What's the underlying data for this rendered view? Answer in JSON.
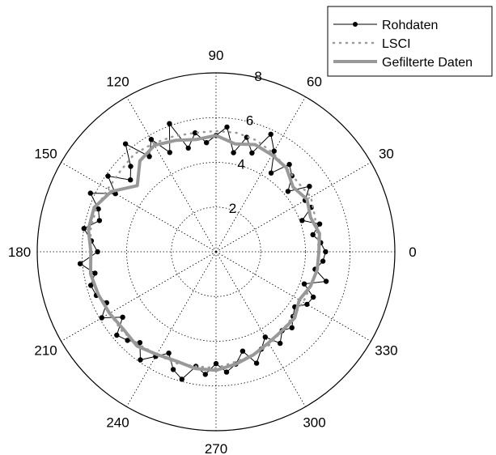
{
  "chart_data": {
    "type": "polar-line",
    "angle_unit": "degrees",
    "r_range": [
      0,
      8
    ],
    "radial_ticks": [
      "2",
      "4",
      "6",
      "8"
    ],
    "angle_ticks": [
      "0",
      "30",
      "60",
      "90",
      "120",
      "150",
      "180",
      "210",
      "240",
      "270",
      "300",
      "330"
    ],
    "grid": true,
    "legend_position": "top-right",
    "legend": [
      "Rohdaten",
      "LSCI",
      "Gefilterte Daten"
    ],
    "colors": {
      "raw": "#000000",
      "lsci": "#999999",
      "filtered": "#999999"
    },
    "series": [
      {
        "name": "Rohdaten",
        "style": "line-markers",
        "theta": [
          0,
          5,
          10,
          15,
          20,
          25,
          30,
          35,
          40,
          45,
          50,
          55,
          60,
          65,
          70,
          75,
          80,
          85,
          90,
          95,
          100,
          105,
          110,
          115,
          120,
          125,
          130,
          135,
          140,
          145,
          150,
          155,
          160,
          165,
          170,
          175,
          180,
          185,
          190,
          195,
          200,
          205,
          210,
          215,
          220,
          225,
          230,
          235,
          240,
          245,
          250,
          255,
          260,
          265,
          270,
          275,
          280,
          285,
          290,
          295,
          300,
          305,
          310,
          315,
          320,
          325,
          330,
          335,
          340,
          345,
          350,
          355
        ],
        "r": [
          4.9,
          4.7,
          4.4,
          4.8,
          4.1,
          4.7,
          4.6,
          5.1,
          4.2,
          4.8,
          5.1,
          4.3,
          5.2,
          5.8,
          4.7,
          5.3,
          4.5,
          5.6,
          5.2,
          4.9,
          5.4,
          4.8,
          6.1,
          4.9,
          5.8,
          5.2,
          6.3,
          5.4,
          5.0,
          5.9,
          5.2,
          6.2,
          5.6,
          5.4,
          6.0,
          5.6,
          5.3,
          6.1,
          5.5,
          5.8,
          5.7,
          5.4,
          5.9,
          5.1,
          5.8,
          5.6,
          5.3,
          5.9,
          5.4,
          5.0,
          5.6,
          5.9,
          5.2,
          5.5,
          5.0,
          5.4,
          5.1,
          4.6,
          5.3,
          4.8,
          4.4,
          5.0,
          4.6,
          4.8,
          4.5,
          4.3,
          4.7,
          4.8,
          4.2,
          5.1,
          4.5,
          4.8
        ]
      },
      {
        "name": "LSCI",
        "style": "dotted",
        "theta": [
          0,
          10,
          20,
          30,
          40,
          50,
          60,
          70,
          80,
          90,
          100,
          110,
          120,
          130,
          140,
          150,
          160,
          170,
          180,
          190,
          200,
          210,
          220,
          230,
          240,
          250,
          260,
          270,
          280,
          290,
          300,
          310,
          320,
          330,
          340,
          350
        ],
        "r": [
          4.6,
          4.6,
          4.7,
          4.9,
          4.8,
          4.9,
          5.1,
          5.3,
          5.4,
          5.4,
          5.4,
          5.5,
          5.6,
          5.7,
          5.6,
          5.6,
          5.7,
          5.7,
          5.6,
          5.7,
          5.6,
          5.5,
          5.5,
          5.4,
          5.3,
          5.3,
          5.2,
          5.2,
          5.0,
          4.9,
          4.8,
          4.6,
          4.5,
          4.5,
          4.5,
          4.6
        ]
      },
      {
        "name": "Gefilterte Daten",
        "style": "thick-line",
        "theta": [
          0,
          10,
          20,
          30,
          40,
          50,
          60,
          70,
          80,
          90,
          100,
          110,
          120,
          130,
          140,
          150,
          160,
          170,
          180,
          190,
          200,
          210,
          220,
          230,
          240,
          250,
          260,
          270,
          280,
          290,
          300,
          310,
          320,
          330,
          340,
          350
        ],
        "r": [
          4.6,
          4.7,
          4.5,
          4.7,
          4.5,
          4.9,
          5.0,
          5.1,
          4.9,
          5.2,
          5.1,
          5.3,
          5.5,
          5.3,
          4.6,
          5.4,
          5.8,
          5.8,
          5.6,
          5.7,
          5.6,
          5.5,
          5.4,
          5.5,
          5.3,
          5.2,
          5.3,
          5.3,
          5.1,
          4.9,
          4.7,
          4.6,
          4.6,
          4.3,
          4.5,
          4.6
        ]
      }
    ]
  }
}
